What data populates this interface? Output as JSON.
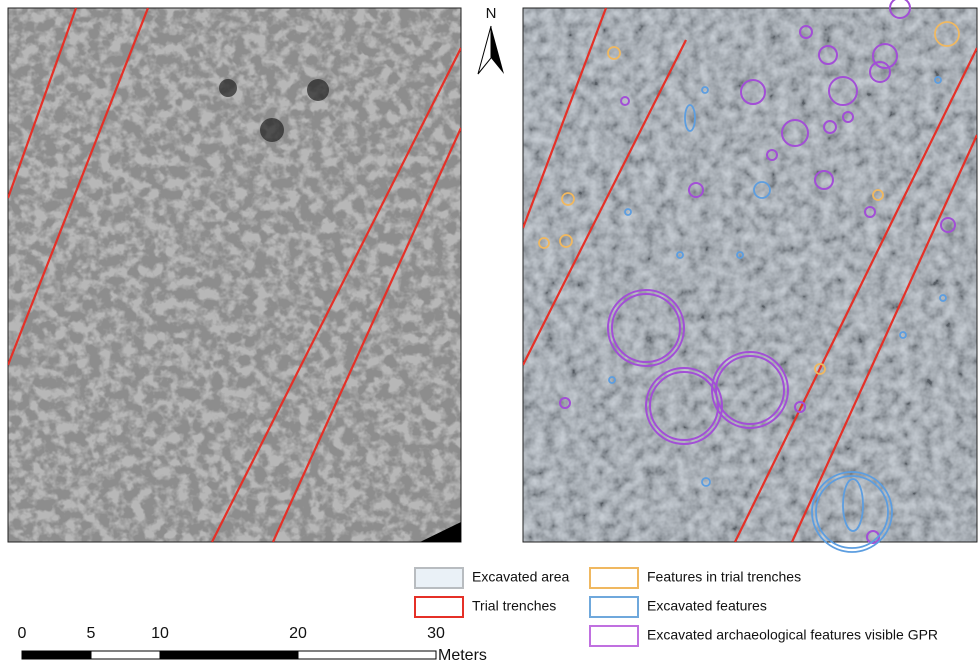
{
  "north": "N",
  "legend": [
    {
      "label": "Excavated area",
      "fill": "#eaf1f7",
      "stroke": "#b8bcc0"
    },
    {
      "label": "Trial trenches",
      "fill": "#ffffff",
      "stroke": "#e53027"
    },
    {
      "label": "Features in trial trenches",
      "fill": "#ffffff",
      "stroke": "#f0b860"
    },
    {
      "label": "Excavated features",
      "fill": "#ffffff",
      "stroke": "#6fa8dc"
    },
    {
      "label": "Excavated archaeological features visible GPR",
      "fill": "#ffffff",
      "stroke": "#c070e0"
    }
  ],
  "scale": {
    "ticks": [
      0,
      5,
      10,
      20,
      30
    ],
    "unit": "Meters"
  }
}
